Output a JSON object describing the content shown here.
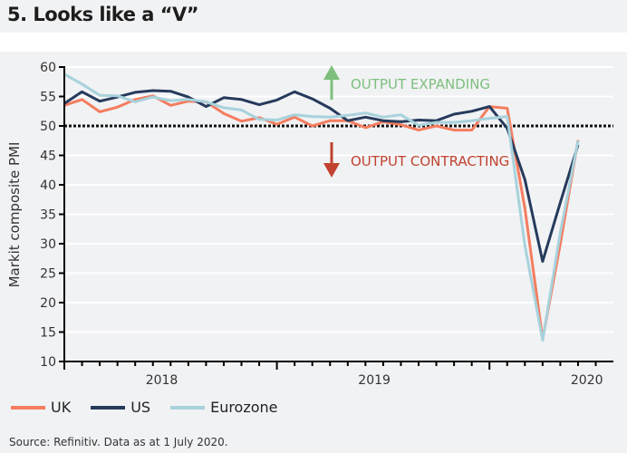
{
  "title": "5. Looks like a “V”",
  "source": "Source: Refinitiv. Data as at 1 July 2020.",
  "annotations": {
    "expanding": "OUTPUT EXPANDING",
    "contracting": "OUTPUT CONTRACTING",
    "expanding_color": "#7dbf7d",
    "contracting_color": "#c0432f"
  },
  "chart_data": {
    "type": "line",
    "title": "",
    "ylabel": "Markit composite PMI",
    "xlabel": "",
    "ylim": [
      10,
      60
    ],
    "yticks": [
      "10",
      "15",
      "20",
      "25",
      "30",
      "35",
      "40",
      "45",
      "50",
      "55",
      "60"
    ],
    "xtick_labels": [
      "2018",
      "2019",
      "2020"
    ],
    "x": [
      "2018-01",
      "2018-02",
      "2018-03",
      "2018-04",
      "2018-05",
      "2018-06",
      "2018-07",
      "2018-08",
      "2018-09",
      "2018-10",
      "2018-11",
      "2018-12",
      "2019-01",
      "2019-02",
      "2019-03",
      "2019-04",
      "2019-05",
      "2019-06",
      "2019-07",
      "2019-08",
      "2019-09",
      "2019-10",
      "2019-11",
      "2019-12",
      "2020-01",
      "2020-02",
      "2020-03",
      "2020-04",
      "2020-05",
      "2020-06"
    ],
    "reference_line": 50,
    "grid": true,
    "legend_position": "bottom-left",
    "series": [
      {
        "name": "UK",
        "color": "#f47d5f",
        "values": [
          53.5,
          54.5,
          52.4,
          53.2,
          54.5,
          55.1,
          53.5,
          54.2,
          54.1,
          52.1,
          50.8,
          51.4,
          50.3,
          51.5,
          50.0,
          50.9,
          50.9,
          49.7,
          50.7,
          50.2,
          49.3,
          50.0,
          49.3,
          49.3,
          53.3,
          53.0,
          36.0,
          13.8,
          30.0,
          47.6
        ]
      },
      {
        "name": "US",
        "color": "#263a5c",
        "values": [
          53.8,
          55.8,
          54.2,
          54.9,
          55.7,
          56.0,
          55.9,
          54.9,
          53.3,
          54.8,
          54.5,
          53.6,
          54.4,
          55.8,
          54.6,
          53.0,
          50.9,
          51.5,
          50.9,
          50.7,
          51.0,
          50.9,
          52.0,
          52.5,
          53.3,
          49.6,
          40.9,
          27.0,
          37.0,
          46.8
        ]
      },
      {
        "name": "Eurozone",
        "color": "#a8d2dc",
        "values": [
          58.8,
          57.1,
          55.2,
          55.1,
          54.1,
          54.9,
          54.3,
          54.5,
          54.1,
          53.1,
          52.7,
          51.1,
          51.0,
          51.9,
          51.6,
          51.5,
          51.8,
          52.2,
          51.5,
          51.9,
          50.1,
          50.6,
          50.6,
          50.9,
          51.3,
          51.6,
          29.7,
          13.6,
          31.9,
          47.5
        ]
      }
    ]
  }
}
